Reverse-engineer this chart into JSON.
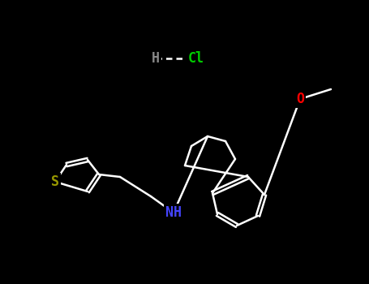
{
  "bg_color": "#000000",
  "bond_color": "#ffffff",
  "bond_width": 1.8,
  "atom_colors": {
    "N": "#4444ff",
    "O": "#ff0000",
    "S": "#999900",
    "Cl": "#00cc00",
    "H": "#aaaaaa"
  },
  "font_size": 11,
  "figwidth": 4.55,
  "figheight": 3.5,
  "dpi": 100
}
